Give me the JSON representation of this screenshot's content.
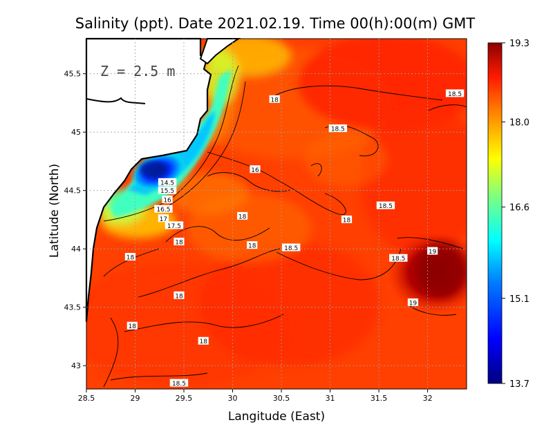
{
  "title": "Salinity (ppt). Date 2021.02.19. Time 00(h):00(m) GMT",
  "depth_label": "Z = 2.5 m",
  "x_axis": {
    "label": "Langitude (East)",
    "range": [
      28.5,
      32.4
    ],
    "ticks": [
      "28.5",
      "29",
      "29.5",
      "30",
      "30.5",
      "31",
      "31.5",
      "32"
    ]
  },
  "y_axis": {
    "label": "Latitude (North)",
    "range": [
      42.8,
      45.8
    ],
    "ticks": [
      "43",
      "43.5",
      "44",
      "44.5",
      "45",
      "45.5"
    ]
  },
  "colorbar": {
    "min": 13.7,
    "max": 19.3,
    "ticks": [
      "19.3",
      "18.0",
      "16.6",
      "15.1",
      "13.7"
    ]
  },
  "contour_labels": [
    {
      "text": "18",
      "lon": 30.43,
      "lat": 45.28
    },
    {
      "text": "18.5",
      "lon": 32.28,
      "lat": 45.33
    },
    {
      "text": "18.5",
      "lon": 31.08,
      "lat": 45.03
    },
    {
      "text": "16",
      "lon": 30.23,
      "lat": 44.68
    },
    {
      "text": "14.5",
      "lon": 29.33,
      "lat": 44.57
    },
    {
      "text": "15.5",
      "lon": 29.33,
      "lat": 44.5
    },
    {
      "text": "16",
      "lon": 29.33,
      "lat": 44.42
    },
    {
      "text": "16.5",
      "lon": 29.29,
      "lat": 44.34
    },
    {
      "text": "17",
      "lon": 29.29,
      "lat": 44.26
    },
    {
      "text": "17.5",
      "lon": 29.4,
      "lat": 44.2
    },
    {
      "text": "18",
      "lon": 30.1,
      "lat": 44.28
    },
    {
      "text": "18",
      "lon": 29.45,
      "lat": 44.06
    },
    {
      "text": "18",
      "lon": 30.2,
      "lat": 44.03
    },
    {
      "text": "18.5",
      "lon": 30.6,
      "lat": 44.01
    },
    {
      "text": "18",
      "lon": 31.17,
      "lat": 44.25
    },
    {
      "text": "18.5",
      "lon": 31.57,
      "lat": 44.37
    },
    {
      "text": "19",
      "lon": 32.05,
      "lat": 43.98
    },
    {
      "text": "18.5",
      "lon": 31.7,
      "lat": 43.92
    },
    {
      "text": "18",
      "lon": 28.95,
      "lat": 43.93
    },
    {
      "text": "18",
      "lon": 29.45,
      "lat": 43.6
    },
    {
      "text": "19",
      "lon": 31.85,
      "lat": 43.54
    },
    {
      "text": "18",
      "lon": 28.97,
      "lat": 43.34
    },
    {
      "text": "18",
      "lon": 29.7,
      "lat": 43.21
    },
    {
      "text": "18.5",
      "lon": 29.45,
      "lat": 42.85
    }
  ],
  "colors": {
    "land": "#ffffff",
    "coast": "#000000",
    "grid": "#a0a0a0",
    "colormap": [
      "#00007f",
      "#0000ff",
      "#007fff",
      "#00ffff",
      "#7fff7f",
      "#ffff00",
      "#ff7f00",
      "#ff0000",
      "#7f0000"
    ]
  }
}
